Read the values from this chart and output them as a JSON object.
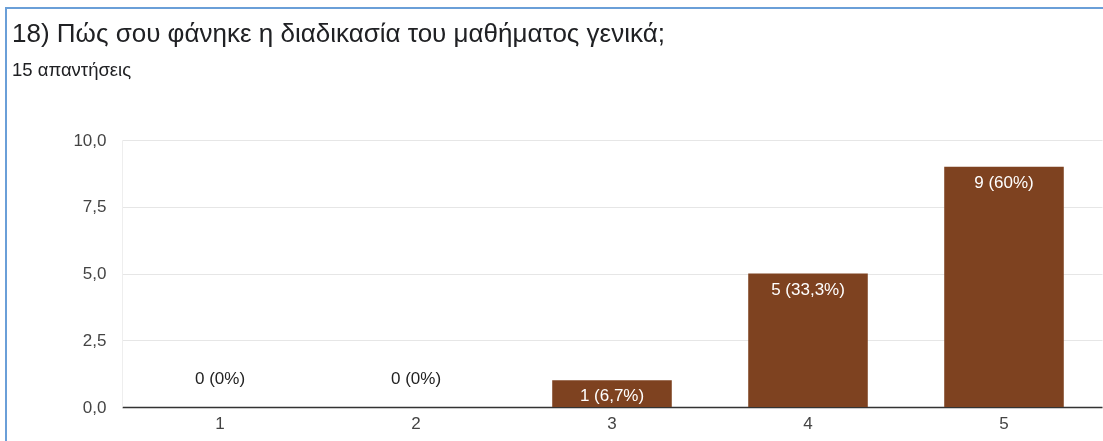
{
  "chart_data": {
    "type": "bar",
    "title": "18) Πώς σου φάνηκε η διαδικασία του μαθήματος γενικά;",
    "subtitle": "15 απαντήσεις",
    "categories": [
      "1",
      "2",
      "3",
      "4",
      "5"
    ],
    "values": [
      0,
      0,
      1,
      5,
      9
    ],
    "value_labels": [
      "0 (0%)",
      "0 (0%)",
      "1 (6,7%)",
      "5 (33,3%)",
      "9 (60%)"
    ],
    "color": "#7e4220",
    "ylim": [
      0,
      10
    ],
    "yticks": [
      {
        "value": 0,
        "label": "0,0"
      },
      {
        "value": 2.5,
        "label": "2,5"
      },
      {
        "value": 5,
        "label": "5,0"
      },
      {
        "value": 7.5,
        "label": "7,5"
      },
      {
        "value": 10,
        "label": "10,0"
      }
    ],
    "grid": "y"
  }
}
